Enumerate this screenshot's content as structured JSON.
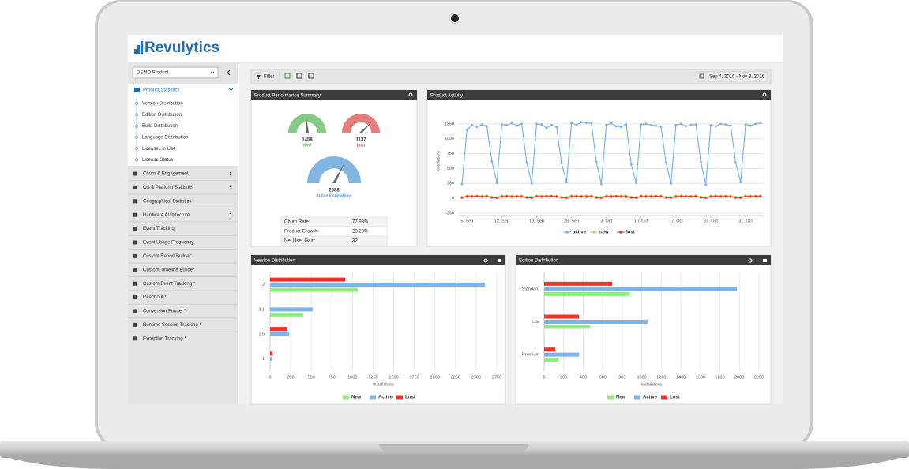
{
  "app": {
    "logo": "Revulytics",
    "product": "DEMO Product",
    "toolbar": {
      "filter": "Filter",
      "date_range": "Sep 4, 2016 - Nov 3, 2016"
    },
    "sidebar": {
      "section": "Product Statistics",
      "submenu": [
        "Version Distribution",
        "Edition Distribution",
        "Build Distribution",
        "Language Distribution",
        "Licenses in Use",
        "License Status"
      ],
      "menu": [
        "Churn & Engagement",
        "OS & Platform Statistics",
        "Geographical Statistics",
        "Hardware Architecture",
        "Event Tracking",
        "Event Usage Frequency",
        "Custom Report Builder",
        "Custom Timeline Builder",
        "Custom Event Tracking *",
        "Reachout *",
        "Conversion Funnel *",
        "Runtime Session Tracking *",
        "Exception Tracking *"
      ]
    },
    "summary": {
      "title": "Product Performance Summary",
      "gauges": [
        {
          "value": 1458,
          "label": "New",
          "color": "#5cb85c"
        },
        {
          "value": 1137,
          "label": "Lost",
          "color": "#d9534f"
        },
        {
          "value": 2688,
          "label": "Active Installations",
          "color": "#5b9bd5"
        }
      ],
      "stats": [
        [
          "Churn Rate:",
          "77.98%"
        ],
        [
          "Product Growth:",
          "28.23%"
        ],
        [
          "Net User Gain:",
          "321"
        ]
      ]
    }
  },
  "chart_data": [
    {
      "type": "line",
      "title": "Product Activity",
      "y_label": "Installations",
      "categories": [
        null,
        "5. Sep",
        null,
        null,
        null,
        null,
        null,
        null,
        "12. Sep",
        null,
        null,
        null,
        null,
        null,
        null,
        "19. Sep",
        null,
        null,
        null,
        null,
        null,
        null,
        "26. Sep",
        null,
        null,
        null,
        null,
        null,
        null,
        "3. Oct",
        null,
        null,
        null,
        null,
        null,
        null,
        "10. Oct",
        null,
        null,
        null,
        null,
        null,
        null,
        "17. Oct",
        null,
        null,
        null,
        null,
        null,
        null,
        "24. Oct",
        null,
        null,
        null,
        null,
        null,
        null,
        "31. Oct",
        null,
        null,
        null
      ],
      "series": [
        {
          "name": "active",
          "color": "#7cb5ec",
          "values": [
            240,
            1150,
            1230,
            1200,
            1240,
            1210,
            620,
            260,
            1240,
            1230,
            1260,
            1220,
            1250,
            600,
            250,
            1250,
            1240,
            1180,
            1230,
            1200,
            590,
            270,
            1260,
            1230,
            1280,
            1270,
            1260,
            610,
            240,
            1230,
            1260,
            1210,
            1200,
            1240,
            570,
            260,
            1240,
            1250,
            1230,
            1220,
            1200,
            600,
            250,
            1230,
            1250,
            1210,
            1230,
            1240,
            610,
            230,
            1230,
            1210,
            1250,
            1240,
            1220,
            600,
            270,
            1240,
            1220,
            1250,
            1270
          ]
        },
        {
          "name": "new",
          "color": "#90ed7d",
          "values": [
            18,
            42,
            45,
            38,
            44,
            40,
            22,
            16,
            46,
            41,
            43,
            39,
            44,
            20,
            15,
            40,
            44,
            47,
            41,
            38,
            21,
            17,
            45,
            43,
            40,
            46,
            42,
            23,
            16,
            41,
            44,
            39,
            45,
            43,
            19,
            18,
            44,
            40,
            46,
            42,
            41,
            22,
            15,
            43,
            45,
            41,
            39,
            44,
            20,
            17,
            42,
            46,
            44,
            40,
            43,
            21,
            16,
            45,
            41,
            44,
            47
          ]
        },
        {
          "name": "lost",
          "color": "#e8302a",
          "values": [
            12,
            30,
            28,
            33,
            27,
            31,
            14,
            10,
            29,
            32,
            27,
            30,
            28,
            13,
            11,
            31,
            27,
            30,
            33,
            29,
            15,
            10,
            28,
            31,
            29,
            27,
            32,
            12,
            11,
            30,
            28,
            33,
            29,
            27,
            14,
            10,
            31,
            29,
            28,
            32,
            30,
            13,
            12,
            27,
            30,
            32,
            28,
            31,
            15,
            10,
            29,
            33,
            28,
            30,
            27,
            12,
            11,
            31,
            28,
            30,
            32
          ]
        }
      ],
      "ylim": [
        -250,
        1500
      ],
      "yticks": [
        -250,
        0,
        250,
        500,
        750,
        1000,
        1250
      ],
      "grid": true,
      "legend": "bottom"
    },
    {
      "type": "bar",
      "orientation": "horizontal",
      "title": "Version Distribution",
      "x_label": "Installations",
      "categories": [
        "2",
        "3.1",
        "1.5",
        "1"
      ],
      "series": [
        {
          "name": "New",
          "color": "#90ed7d",
          "values": [
            1063,
            402,
            0,
            0
          ]
        },
        {
          "name": "Active",
          "color": "#7cb5ec",
          "values": [
            2605,
            517,
            230,
            20
          ]
        },
        {
          "name": "Lost",
          "color": "#f0332b",
          "values": [
            910,
            0,
            210,
            30
          ]
        }
      ],
      "xlim": [
        0,
        2750
      ],
      "xticks": [
        0,
        250,
        500,
        750,
        1000,
        1250,
        1500,
        1750,
        2000,
        2250,
        2500,
        2750
      ],
      "grid": true,
      "legend": "bottom"
    },
    {
      "type": "bar",
      "orientation": "horizontal",
      "title": "Edition Distribution",
      "x_label": "Installations",
      "categories": [
        "Standard",
        "Lite",
        "Premium"
      ],
      "series": [
        {
          "name": "New",
          "color": "#90ed7d",
          "values": [
            874,
            469,
            146
          ]
        },
        {
          "name": "Active",
          "color": "#7cb5ec",
          "values": [
            1974,
            1060,
            356
          ]
        },
        {
          "name": "Lost",
          "color": "#f0332b",
          "values": [
            696,
            356,
            113
          ]
        }
      ],
      "xlim": [
        0,
        2200
      ],
      "xticks": [
        0,
        200,
        400,
        600,
        800,
        1000,
        1200,
        1400,
        1600,
        1800,
        2000,
        2200
      ],
      "grid": true,
      "legend": "bottom"
    }
  ]
}
